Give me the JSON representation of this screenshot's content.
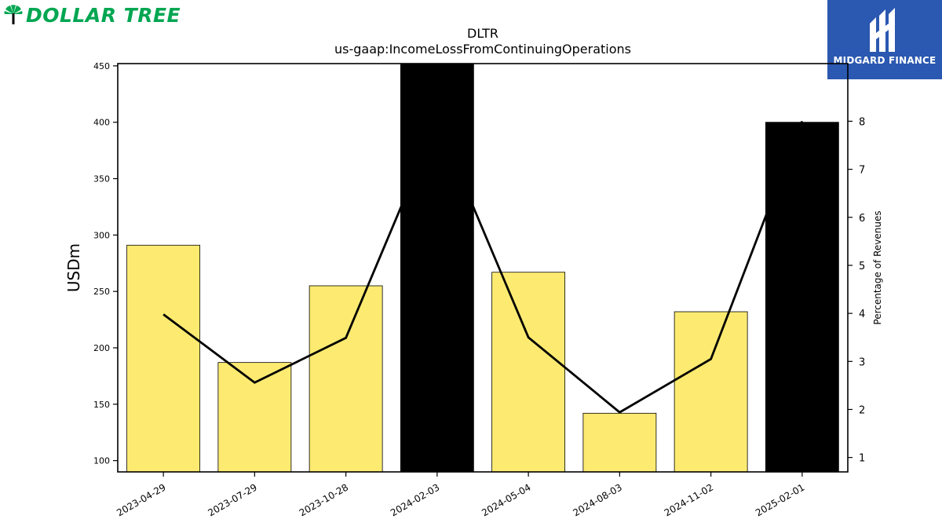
{
  "logos": {
    "left": {
      "text": "DOLLAR TREE",
      "color": "#00A651"
    },
    "right": {
      "text": "MIDGARD FINANCE",
      "background": "#2B58B0"
    }
  },
  "chart_data": {
    "type": "bar",
    "title": "DLTR",
    "subtitle": "us-gaap:IncomeLossFromContinuingOperations",
    "categories": [
      "2023-04-29",
      "2023-07-29",
      "2023-10-28",
      "2024-02-03",
      "2024-05-04",
      "2024-08-03",
      "2024-11-02",
      "2025-02-01"
    ],
    "series": [
      {
        "type": "bar",
        "axis": "left",
        "values": [
          291,
          187,
          255,
          452,
          267,
          142,
          232,
          400
        ],
        "colors": [
          "#FDEB71",
          "#FDEB71",
          "#FDEB71",
          "#000000",
          "#FDEB71",
          "#FDEB71",
          "#FDEB71",
          "#000000"
        ]
      },
      {
        "type": "line",
        "axis": "right",
        "values": [
          3.98,
          2.56,
          3.49,
          8.0,
          3.5,
          1.94,
          3.05,
          8.0
        ],
        "color": "#000000"
      }
    ],
    "ylabel": "USDm",
    "ylabel_right": "Percentage of Revenues",
    "ylim": [
      90,
      452
    ],
    "ylim_right": [
      0.7,
      9.2
    ],
    "yticks": [
      100,
      150,
      200,
      250,
      300,
      350,
      400,
      450
    ],
    "yticks_right": [
      1,
      2,
      3,
      4,
      5,
      6,
      7,
      8
    ],
    "grid": false
  }
}
